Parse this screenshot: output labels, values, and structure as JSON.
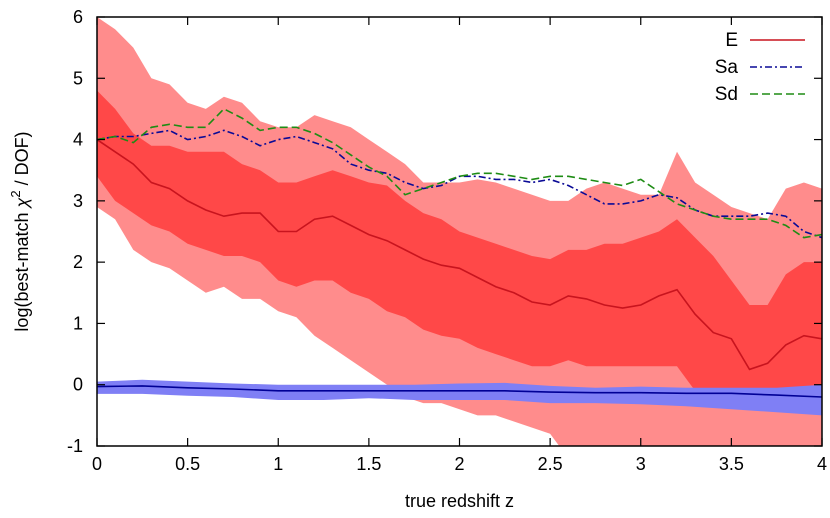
{
  "chart_data": {
    "type": "line",
    "xlabel": "true redshift z",
    "ylabel_prefix": "log(best-match ",
    "ylabel_chi": "χ",
    "ylabel_sup": "2",
    "ylabel_suffix": " / DOF)",
    "xlim": [
      0,
      4
    ],
    "ylim": [
      -1,
      6
    ],
    "xticks": [
      0,
      0.5,
      1,
      1.5,
      2,
      2.5,
      3,
      3.5,
      4
    ],
    "xtick_labels": [
      "0",
      "0.5",
      "1",
      "1.5",
      "2",
      "2.5",
      "3",
      "3.5",
      "4"
    ],
    "yticks": [
      -1,
      0,
      1,
      2,
      3,
      4,
      5,
      6
    ],
    "ytick_labels": [
      "-1",
      "0",
      "1",
      "2",
      "3",
      "4",
      "5",
      "6"
    ],
    "legend_position": "top-right",
    "colors": {
      "E": "#c8141e",
      "Sa": "#0a0a96",
      "Sd": "#1e8c14",
      "E_band_outer": "#ff8c8c",
      "E_band_inner": "#ff4848",
      "blue_band": "#7f7ff5",
      "blue_line": "#000096"
    },
    "series": [
      {
        "name": "E",
        "style": "solid",
        "x": [
          0,
          0.1,
          0.2,
          0.3,
          0.4,
          0.5,
          0.6,
          0.7,
          0.8,
          0.9,
          1.0,
          1.1,
          1.2,
          1.3,
          1.4,
          1.5,
          1.6,
          1.7,
          1.8,
          1.9,
          2.0,
          2.1,
          2.2,
          2.3,
          2.4,
          2.5,
          2.6,
          2.7,
          2.8,
          2.9,
          3.0,
          3.1,
          3.2,
          3.3,
          3.4,
          3.5,
          3.6,
          3.7,
          3.8,
          3.9,
          4.0
        ],
        "y": [
          4.0,
          3.8,
          3.6,
          3.3,
          3.2,
          3.0,
          2.85,
          2.75,
          2.8,
          2.8,
          2.5,
          2.5,
          2.7,
          2.75,
          2.6,
          2.45,
          2.35,
          2.2,
          2.05,
          1.95,
          1.9,
          1.75,
          1.6,
          1.5,
          1.35,
          1.3,
          1.45,
          1.4,
          1.3,
          1.25,
          1.3,
          1.45,
          1.55,
          1.15,
          0.85,
          0.75,
          0.25,
          0.35,
          0.65,
          0.8,
          0.75
        ]
      },
      {
        "name": "Sa",
        "style": "dash-dot",
        "x": [
          0,
          0.1,
          0.2,
          0.3,
          0.4,
          0.5,
          0.6,
          0.7,
          0.8,
          0.9,
          1.0,
          1.1,
          1.2,
          1.3,
          1.4,
          1.5,
          1.6,
          1.7,
          1.8,
          1.9,
          2.0,
          2.1,
          2.2,
          2.3,
          2.4,
          2.5,
          2.6,
          2.7,
          2.8,
          2.9,
          3.0,
          3.1,
          3.2,
          3.3,
          3.4,
          3.5,
          3.6,
          3.7,
          3.8,
          3.9,
          4.0
        ],
        "y": [
          4.0,
          4.05,
          4.05,
          4.1,
          4.15,
          4.0,
          4.05,
          4.15,
          4.05,
          3.9,
          4.0,
          4.05,
          3.95,
          3.85,
          3.6,
          3.5,
          3.45,
          3.3,
          3.2,
          3.25,
          3.4,
          3.4,
          3.35,
          3.35,
          3.3,
          3.35,
          3.25,
          3.1,
          2.95,
          2.95,
          3.0,
          3.1,
          3.05,
          2.85,
          2.75,
          2.75,
          2.75,
          2.8,
          2.75,
          2.5,
          2.4
        ]
      },
      {
        "name": "Sd",
        "style": "dashed",
        "x": [
          0,
          0.1,
          0.2,
          0.3,
          0.4,
          0.5,
          0.6,
          0.7,
          0.8,
          0.9,
          1.0,
          1.1,
          1.2,
          1.3,
          1.4,
          1.5,
          1.6,
          1.7,
          1.8,
          1.9,
          2.0,
          2.1,
          2.2,
          2.3,
          2.4,
          2.5,
          2.6,
          2.7,
          2.8,
          2.9,
          3.0,
          3.1,
          3.2,
          3.3,
          3.4,
          3.5,
          3.6,
          3.7,
          3.8,
          3.9,
          4.0
        ],
        "y": [
          4.0,
          4.05,
          3.95,
          4.2,
          4.25,
          4.2,
          4.2,
          4.5,
          4.35,
          4.15,
          4.2,
          4.2,
          4.1,
          3.95,
          3.75,
          3.55,
          3.4,
          3.1,
          3.2,
          3.3,
          3.4,
          3.45,
          3.45,
          3.4,
          3.35,
          3.4,
          3.4,
          3.35,
          3.3,
          3.25,
          3.35,
          3.15,
          2.95,
          2.85,
          2.75,
          2.7,
          2.7,
          2.7,
          2.6,
          2.4,
          2.45
        ]
      }
    ],
    "bands": [
      {
        "kind": "E-outer",
        "x": [
          0,
          0.1,
          0.2,
          0.3,
          0.4,
          0.5,
          0.6,
          0.7,
          0.8,
          0.9,
          1.0,
          1.1,
          1.2,
          1.3,
          1.4,
          1.5,
          1.6,
          1.7,
          1.8,
          1.9,
          2.0,
          2.1,
          2.2,
          2.3,
          2.4,
          2.5,
          2.6,
          2.7,
          2.8,
          2.9,
          3.0,
          3.1,
          3.2,
          3.3,
          3.4,
          3.5,
          3.6,
          3.7,
          3.8,
          3.9,
          4.0
        ],
        "upper": [
          6.0,
          5.8,
          5.5,
          5.0,
          4.9,
          4.6,
          4.5,
          4.7,
          4.6,
          4.3,
          4.2,
          4.2,
          4.4,
          4.3,
          4.2,
          4.0,
          3.8,
          3.6,
          3.3,
          3.3,
          3.3,
          3.35,
          3.3,
          3.2,
          3.1,
          3.0,
          3.0,
          3.2,
          3.3,
          3.2,
          3.1,
          3.1,
          3.8,
          3.3,
          3.1,
          2.9,
          2.8,
          2.7,
          3.2,
          3.3,
          3.2
        ],
        "lower": [
          2.9,
          2.7,
          2.2,
          2.0,
          1.9,
          1.7,
          1.5,
          1.6,
          1.4,
          1.4,
          1.2,
          1.1,
          0.8,
          0.6,
          0.4,
          0.2,
          0.0,
          -0.2,
          -0.3,
          -0.3,
          -0.4,
          -0.5,
          -0.5,
          -0.6,
          -0.7,
          -0.8,
          -1.2,
          -1.2,
          -1.0,
          -1.0,
          -1.0,
          -1.0,
          -1.1,
          -1.2,
          -1.3,
          -1.3,
          -1.5,
          -1.5,
          -1.5,
          -1.5,
          -1.5
        ]
      },
      {
        "kind": "E-inner",
        "x": [
          0,
          0.1,
          0.2,
          0.3,
          0.4,
          0.5,
          0.6,
          0.7,
          0.8,
          0.9,
          1.0,
          1.1,
          1.2,
          1.3,
          1.4,
          1.5,
          1.6,
          1.7,
          1.8,
          1.9,
          2.0,
          2.1,
          2.2,
          2.3,
          2.4,
          2.5,
          2.6,
          2.7,
          2.8,
          2.9,
          3.0,
          3.1,
          3.2,
          3.3,
          3.4,
          3.5,
          3.6,
          3.7,
          3.8,
          3.9,
          4.0
        ],
        "upper": [
          4.8,
          4.5,
          4.1,
          3.9,
          3.9,
          3.8,
          3.8,
          3.8,
          3.6,
          3.5,
          3.3,
          3.3,
          3.4,
          3.5,
          3.4,
          3.3,
          3.25,
          3.0,
          2.8,
          2.7,
          2.5,
          2.4,
          2.3,
          2.2,
          2.1,
          2.05,
          2.2,
          2.2,
          2.3,
          2.3,
          2.4,
          2.5,
          2.7,
          2.4,
          2.1,
          1.7,
          1.3,
          1.3,
          1.8,
          2.0,
          2.0
        ],
        "lower": [
          3.4,
          3.0,
          2.8,
          2.6,
          2.5,
          2.3,
          2.2,
          2.1,
          2.1,
          2.0,
          1.7,
          1.6,
          1.7,
          1.7,
          1.5,
          1.4,
          1.2,
          1.1,
          0.9,
          0.8,
          0.75,
          0.6,
          0.5,
          0.4,
          0.3,
          0.3,
          0.4,
          0.3,
          0.3,
          0.3,
          0.3,
          0.3,
          0.3,
          -0.1,
          -0.2,
          -0.2,
          -0.3,
          -0.3,
          -0.2,
          -0.2,
          -0.2
        ]
      },
      {
        "kind": "blue",
        "x": [
          0,
          0.25,
          0.5,
          0.75,
          1.0,
          1.25,
          1.5,
          1.75,
          2.0,
          2.25,
          2.5,
          2.75,
          3.0,
          3.25,
          3.5,
          3.75,
          4.0
        ],
        "upper": [
          0.05,
          0.08,
          0.05,
          0.02,
          0.0,
          0.0,
          0.0,
          0.0,
          0.02,
          0.03,
          -0.02,
          -0.05,
          -0.03,
          -0.05,
          -0.05,
          -0.05,
          0.0
        ],
        "lower": [
          -0.15,
          -0.15,
          -0.18,
          -0.2,
          -0.25,
          -0.25,
          -0.22,
          -0.25,
          -0.25,
          -0.25,
          -0.3,
          -0.3,
          -0.32,
          -0.35,
          -0.4,
          -0.45,
          -0.5
        ]
      }
    ],
    "median_line": {
      "x": [
        0,
        0.25,
        0.5,
        0.75,
        1.0,
        1.25,
        1.5,
        1.75,
        2.0,
        2.25,
        2.5,
        2.75,
        3.0,
        3.25,
        3.5,
        3.75,
        4.0
      ],
      "y": [
        -0.03,
        -0.02,
        -0.05,
        -0.07,
        -0.1,
        -0.1,
        -0.1,
        -0.1,
        -0.1,
        -0.1,
        -0.12,
        -0.13,
        -0.13,
        -0.14,
        -0.14,
        -0.17,
        -0.2
      ]
    }
  }
}
